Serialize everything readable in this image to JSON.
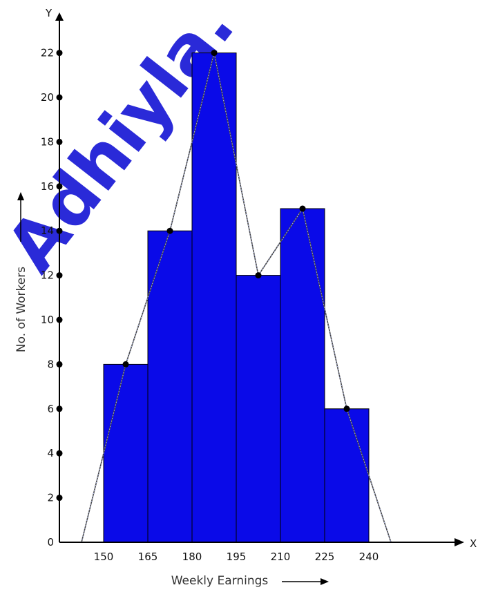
{
  "chart_data": {
    "type": "bar",
    "subtype": "histogram-with-frequency-polygon",
    "class_boundaries": [
      150,
      165,
      180,
      195,
      210,
      225,
      240
    ],
    "categories": [
      "150-165",
      "165-180",
      "180-195",
      "195-210",
      "210-225",
      "225-240"
    ],
    "values": [
      8,
      14,
      22,
      12,
      15,
      6
    ],
    "frequency_polygon": {
      "x": [
        142.5,
        157.5,
        172.5,
        187.5,
        202.5,
        217.5,
        232.5,
        247.5
      ],
      "y": [
        0,
        8,
        14,
        22,
        12,
        15,
        6,
        0
      ]
    },
    "xlabel": "Weekly Earnings",
    "ylabel": "No. of Workers",
    "x_axis_letter": "X",
    "y_axis_letter": "Y",
    "y_ticks": [
      0,
      2,
      4,
      6,
      8,
      10,
      12,
      14,
      16,
      18,
      20,
      22
    ],
    "x_tick_labels": [
      "150",
      "165",
      "180",
      "195",
      "210",
      "225",
      "240"
    ],
    "ylim": [
      0,
      23
    ],
    "grid": false,
    "colors": {
      "bar_fill": "#0a0ae8",
      "bar_edge": "#000000",
      "polygon_line": "#444444",
      "axis": "#000000",
      "vertex": "#000000",
      "watermark": "#1f1fd6"
    },
    "watermark_text": "Adhiyla."
  }
}
